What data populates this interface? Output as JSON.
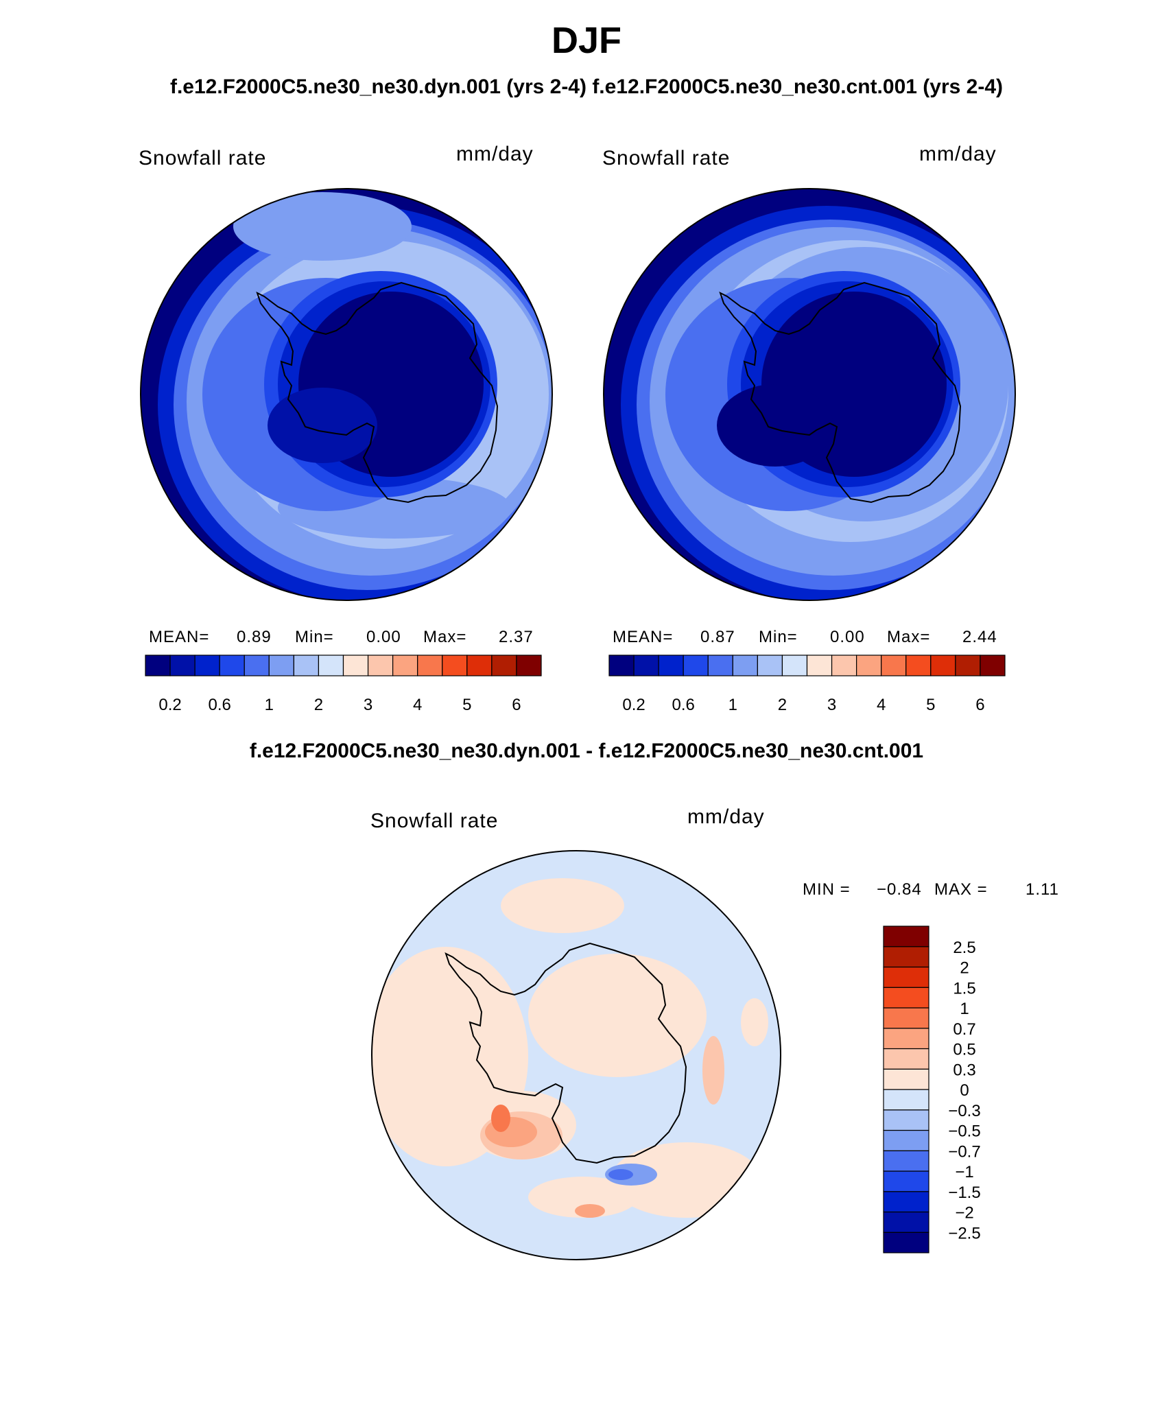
{
  "title": "DJF",
  "case_line": "f.e12.F2000C5.ne30_ne30.dyn.001 (yrs 2-4)  f.e12.F2000C5.ne30_ne30.cnt.001 (yrs 2-4)",
  "diff_line": "f.e12.F2000C5.ne30_ne30.dyn.001 - f.e12.F2000C5.ne30_ne30.cnt.001",
  "panels": [
    {
      "variable": "Snowfall rate",
      "units": "mm/day",
      "mean_label": "MEAN=",
      "mean": "0.89",
      "min_label": "Min=",
      "min": "0.00",
      "max_label": "Max=",
      "max": "2.37"
    },
    {
      "variable": "Snowfall rate",
      "units": "mm/day",
      "mean_label": "MEAN=",
      "mean": "0.87",
      "min_label": "Min=",
      "min": "0.00",
      "max_label": "Max=",
      "max": "2.44"
    }
  ],
  "diff_panel": {
    "variable": "Snowfall rate",
    "units": "mm/day",
    "min_label": "MIN =",
    "min": "−0.84",
    "max_label": "MAX =",
    "max": "1.11"
  },
  "colorbar_main": {
    "colors": [
      "#00007f",
      "#0011a8",
      "#0022cc",
      "#1f48ea",
      "#4a6ff0",
      "#7d9ef2",
      "#a9c2f6",
      "#d4e4fa",
      "#fde5d6",
      "#fcc6ad",
      "#fba480",
      "#f8774c",
      "#f44d1f",
      "#de2e08",
      "#b01e02",
      "#7f0000"
    ],
    "tick_labels": [
      "0.2",
      "0.6",
      "1",
      "2",
      "3",
      "4",
      "5",
      "6"
    ],
    "tick_boundaries": [
      1,
      3,
      5,
      7,
      9,
      11,
      13,
      15
    ]
  },
  "colorbar_diff": {
    "colors": [
      "#00007f",
      "#0011a8",
      "#0022cc",
      "#1f48ea",
      "#4a6ff0",
      "#7d9ef2",
      "#a9c2f6",
      "#d4e4fa",
      "#fde5d6",
      "#fcc6ad",
      "#fba480",
      "#f8774c",
      "#f44d1f",
      "#de2e08",
      "#b01e02",
      "#7f0000"
    ],
    "tick_labels": [
      "−2.5",
      "−2",
      "−1.5",
      "−1",
      "−0.7",
      "−0.5",
      "−0.3",
      "0",
      "0.3",
      "0.5",
      "0.7",
      "1",
      "1.5",
      "2",
      "2.5"
    ]
  },
  "colors": {
    "ocean_deep": "#00007f",
    "antarctic_interior": "#00007f",
    "diff_background": "#d4e4fa",
    "diff_positive": "#fde5d6"
  }
}
